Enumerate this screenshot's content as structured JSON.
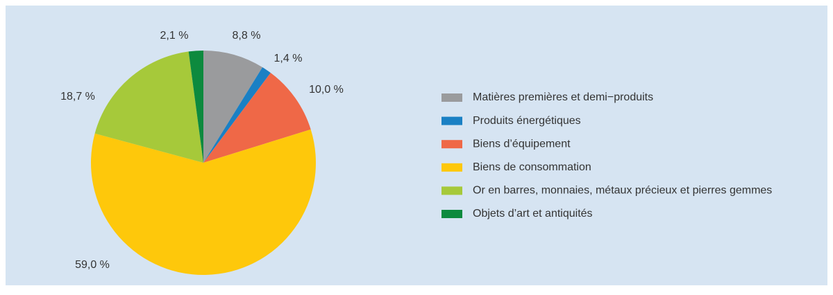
{
  "chart_data": {
    "type": "pie",
    "categories": [
      "Matières premières et demi−produits",
      "Produits énergétiques",
      "Biens d’équipement",
      "Biens de consommation",
      "Or en barres, monnaies, métaux précieux et pierres gemmes",
      "Objets d’art et antiquités"
    ],
    "values": [
      8.8,
      1.4,
      10.0,
      59.0,
      18.7,
      2.1
    ],
    "value_labels": [
      "8,8 %",
      "1,4 %",
      "10,0 %",
      "59,0 %",
      "18,7 %",
      "2,1 %"
    ],
    "colors": [
      "#9a9b9d",
      "#1a80c4",
      "#ef6847",
      "#fec80b",
      "#a6c93a",
      "#0d8a3e"
    ],
    "legend": "right"
  }
}
